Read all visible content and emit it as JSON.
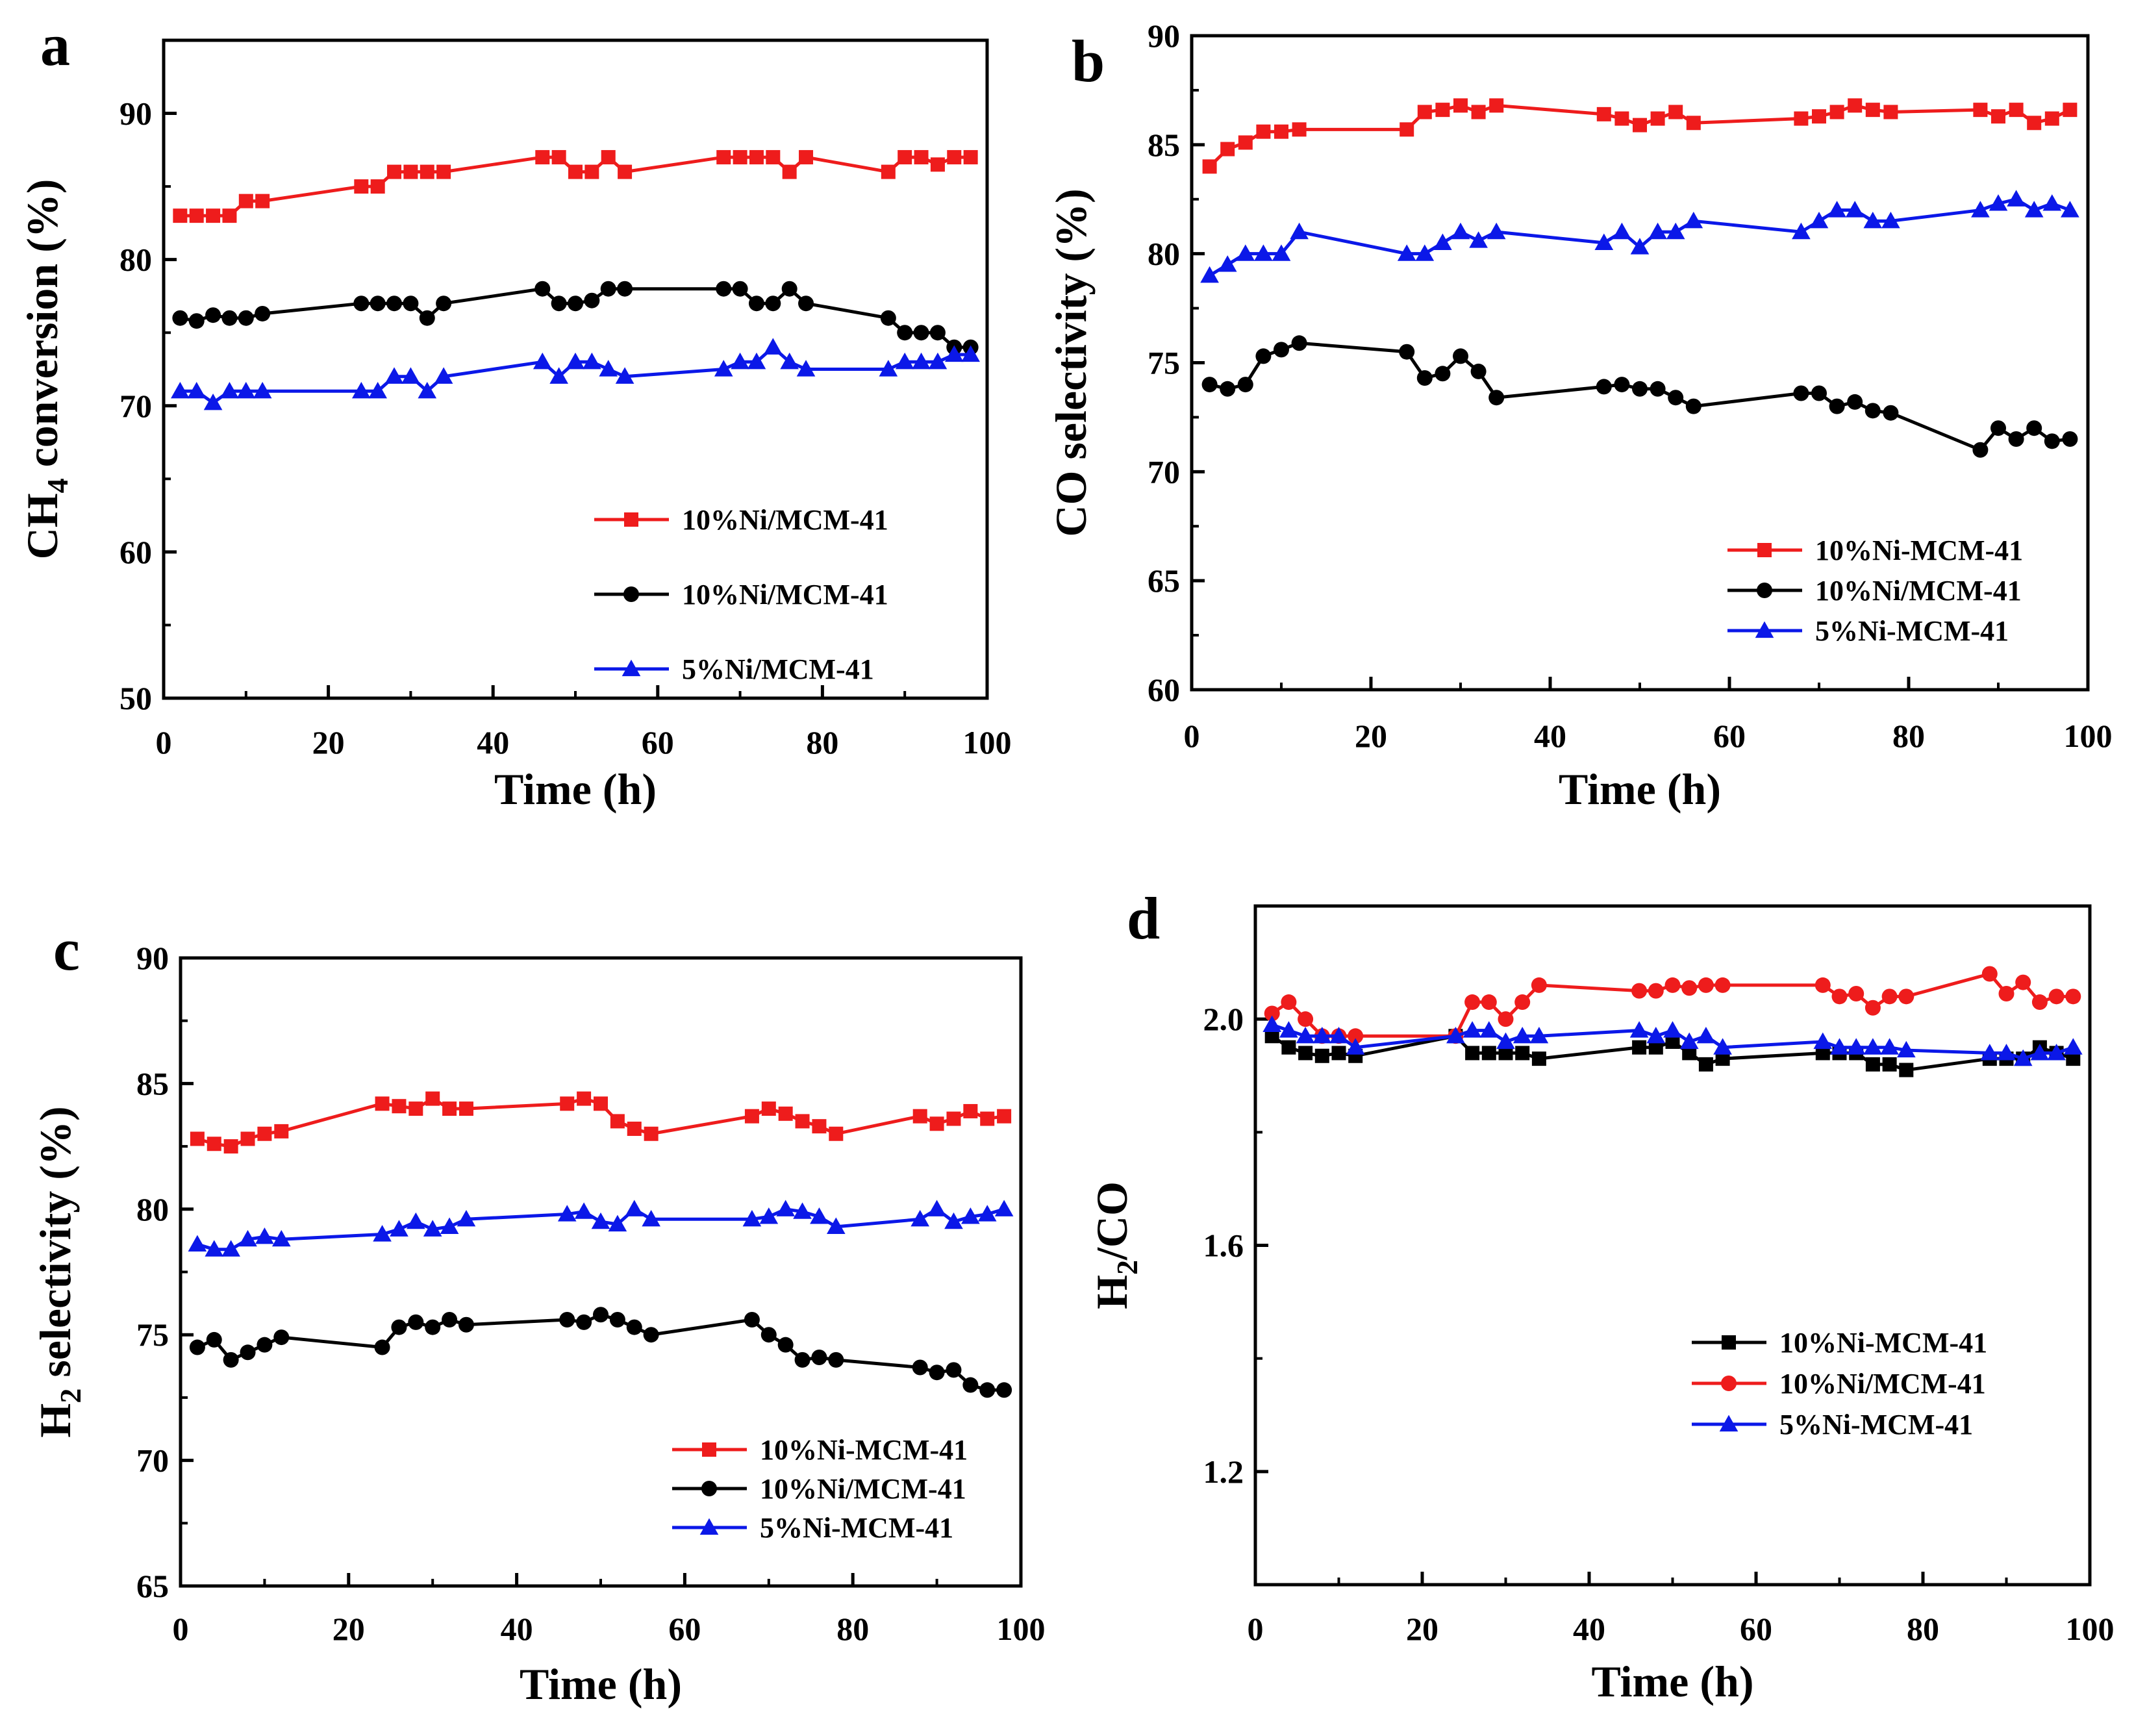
{
  "colors": {
    "red": "#ee1c1c",
    "black": "#000000",
    "blue": "#0b18e8"
  },
  "chart_data": [
    {
      "panel": "a",
      "type": "line",
      "xlabel": "Time (h)",
      "ylabel_main": "CH",
      "ylabel_sub": "4",
      "ylabel_rest": " conversion (%)",
      "xlim": [
        0,
        100
      ],
      "ylim": [
        50,
        95
      ],
      "xticks": [
        0,
        20,
        40,
        60,
        80,
        100
      ],
      "yticks": [
        50,
        60,
        70,
        80,
        90
      ],
      "legend_position": "lower-right",
      "series": [
        {
          "name": "10%Ni/MCM-41",
          "color": "red",
          "marker": "square",
          "x": [
            2,
            4,
            6,
            8,
            10,
            12,
            24,
            26,
            28,
            30,
            32,
            34,
            46,
            48,
            50,
            52,
            54,
            56,
            68,
            70,
            72,
            74,
            76,
            78,
            88,
            90,
            92,
            94,
            96,
            98
          ],
          "y": [
            83,
            83,
            83,
            83,
            84,
            84,
            85,
            85,
            86,
            86,
            86,
            86,
            87,
            87,
            86,
            86,
            87,
            86,
            87,
            87,
            87,
            87,
            86,
            87,
            86,
            87,
            87,
            86.5,
            87,
            87
          ]
        },
        {
          "name": "10%Ni/MCM-41",
          "color": "black",
          "marker": "circle",
          "x": [
            2,
            4,
            6,
            8,
            10,
            12,
            24,
            26,
            28,
            30,
            32,
            34,
            46,
            48,
            50,
            52,
            54,
            56,
            68,
            70,
            72,
            74,
            76,
            78,
            88,
            90,
            92,
            94,
            96,
            98
          ],
          "y": [
            76,
            75.8,
            76.2,
            76,
            76,
            76.3,
            77,
            77,
            77,
            77,
            76,
            77,
            78,
            77,
            77,
            77.2,
            78,
            78,
            78,
            78,
            77,
            77,
            78,
            77,
            76,
            75,
            75,
            75,
            74,
            74
          ]
        },
        {
          "name": "5%Ni/MCM-41",
          "color": "blue",
          "marker": "triangle",
          "x": [
            2,
            4,
            6,
            8,
            10,
            12,
            24,
            26,
            28,
            30,
            32,
            34,
            46,
            48,
            50,
            52,
            54,
            56,
            68,
            70,
            72,
            74,
            76,
            78,
            88,
            90,
            92,
            94,
            96,
            98
          ],
          "y": [
            71,
            71,
            70.2,
            71,
            71,
            71,
            71,
            71,
            72,
            72,
            71,
            72,
            73,
            72,
            73,
            73,
            72.5,
            72,
            72.5,
            73,
            73,
            74,
            73,
            72.5,
            72.5,
            73,
            73,
            73,
            73.5,
            73.5
          ]
        }
      ]
    },
    {
      "panel": "b",
      "type": "line",
      "xlabel": "Time (h)",
      "ylabel_main": "CO selectivity (%)",
      "ylabel_sub": "",
      "ylabel_rest": "",
      "xlim": [
        0,
        100
      ],
      "ylim": [
        60,
        90
      ],
      "xticks": [
        0,
        20,
        40,
        60,
        80,
        100
      ],
      "yticks": [
        60,
        65,
        70,
        75,
        80,
        85,
        90
      ],
      "legend_position": "lower-right",
      "series": [
        {
          "name": "10%Ni-MCM-41",
          "color": "red",
          "marker": "square",
          "x": [
            2,
            4,
            6,
            8,
            10,
            12,
            24,
            26,
            28,
            30,
            32,
            34,
            46,
            48,
            50,
            52,
            54,
            56,
            68,
            70,
            72,
            74,
            76,
            78,
            88,
            90,
            92,
            94,
            96,
            98
          ],
          "y": [
            84,
            84.8,
            85.1,
            85.6,
            85.6,
            85.7,
            85.7,
            86.5,
            86.6,
            86.8,
            86.5,
            86.8,
            86.4,
            86.2,
            85.9,
            86.2,
            86.5,
            86,
            86.2,
            86.3,
            86.5,
            86.8,
            86.6,
            86.5,
            86.6,
            86.3,
            86.6,
            86,
            86.2,
            86.6
          ]
        },
        {
          "name": "10%Ni/MCM-41",
          "color": "black",
          "marker": "circle",
          "x": [
            2,
            4,
            6,
            8,
            10,
            12,
            24,
            26,
            28,
            30,
            32,
            34,
            46,
            48,
            50,
            52,
            54,
            56,
            68,
            70,
            72,
            74,
            76,
            78,
            88,
            90,
            92,
            94,
            96,
            98
          ],
          "y": [
            74,
            73.8,
            74,
            75.3,
            75.6,
            75.9,
            75.5,
            74.3,
            74.5,
            75.3,
            74.6,
            73.4,
            73.9,
            74,
            73.8,
            73.8,
            73.4,
            73,
            73.6,
            73.6,
            73,
            73.2,
            72.8,
            72.7,
            71,
            72,
            71.5,
            72,
            71.4,
            71.5
          ]
        },
        {
          "name": "5%Ni-MCM-41",
          "color": "blue",
          "marker": "triangle",
          "x": [
            2,
            4,
            6,
            8,
            10,
            12,
            24,
            26,
            28,
            30,
            32,
            34,
            46,
            48,
            50,
            52,
            54,
            56,
            68,
            70,
            72,
            74,
            76,
            78,
            88,
            90,
            92,
            94,
            96,
            98
          ],
          "y": [
            79,
            79.5,
            80,
            80,
            80,
            81,
            80,
            80,
            80.5,
            81,
            80.6,
            81,
            80.5,
            81,
            80.3,
            81,
            81,
            81.5,
            81,
            81.5,
            82,
            82,
            81.5,
            81.5,
            82,
            82.3,
            82.5,
            82,
            82.3,
            82
          ]
        }
      ]
    },
    {
      "panel": "c",
      "type": "line",
      "xlabel": "Time (h)",
      "ylabel_main": "H",
      "ylabel_sub": "2",
      "ylabel_rest": " selectivity (%)",
      "xlim": [
        0,
        100
      ],
      "ylim": [
        65,
        90
      ],
      "xticks": [
        0,
        20,
        40,
        60,
        80,
        100
      ],
      "yticks": [
        65,
        70,
        75,
        80,
        85,
        90
      ],
      "legend_position": "lower-right",
      "series": [
        {
          "name": "10%Ni-MCM-41",
          "color": "red",
          "marker": "square",
          "x": [
            2,
            4,
            6,
            8,
            10,
            12,
            24,
            26,
            28,
            30,
            32,
            34,
            46,
            48,
            50,
            52,
            54,
            56,
            68,
            70,
            72,
            74,
            76,
            78,
            88,
            90,
            92,
            94,
            96,
            98
          ],
          "y": [
            82.8,
            82.6,
            82.5,
            82.8,
            83,
            83.1,
            84.2,
            84.1,
            84,
            84.4,
            84,
            84,
            84.2,
            84.4,
            84.2,
            83.5,
            83.2,
            83,
            83.7,
            84,
            83.8,
            83.5,
            83.3,
            83,
            83.7,
            83.4,
            83.6,
            83.9,
            83.6,
            83.7
          ]
        },
        {
          "name": "10%Ni/MCM-41",
          "color": "black",
          "marker": "circle",
          "x": [
            2,
            4,
            6,
            8,
            10,
            12,
            24,
            26,
            28,
            30,
            32,
            34,
            46,
            48,
            50,
            52,
            54,
            56,
            68,
            70,
            72,
            74,
            76,
            78,
            88,
            90,
            92,
            94,
            96,
            98
          ],
          "y": [
            74.5,
            74.8,
            74,
            74.3,
            74.6,
            74.9,
            74.5,
            75.3,
            75.5,
            75.3,
            75.6,
            75.4,
            75.6,
            75.5,
            75.8,
            75.6,
            75.3,
            75,
            75.6,
            75,
            74.6,
            74,
            74.1,
            74,
            73.7,
            73.5,
            73.6,
            73,
            72.8,
            72.8
          ]
        },
        {
          "name": "5%Ni-MCM-41",
          "color": "blue",
          "marker": "triangle",
          "x": [
            2,
            4,
            6,
            8,
            10,
            12,
            24,
            26,
            28,
            30,
            32,
            34,
            46,
            48,
            50,
            52,
            54,
            56,
            68,
            70,
            72,
            74,
            76,
            78,
            88,
            90,
            92,
            94,
            96,
            98
          ],
          "y": [
            78.6,
            78.4,
            78.4,
            78.8,
            78.9,
            78.8,
            79,
            79.2,
            79.5,
            79.2,
            79.3,
            79.6,
            79.8,
            79.9,
            79.5,
            79.4,
            80,
            79.6,
            79.6,
            79.7,
            80,
            79.9,
            79.7,
            79.3,
            79.6,
            80,
            79.5,
            79.7,
            79.8,
            80
          ]
        }
      ]
    },
    {
      "panel": "d",
      "type": "line",
      "xlabel": "Time (h)",
      "ylabel_main": "H",
      "ylabel_sub": "2",
      "ylabel_rest": "/CO",
      "xlim": [
        0,
        100
      ],
      "ylim": [
        1.0,
        2.2
      ],
      "xticks": [
        0,
        20,
        40,
        60,
        80,
        100
      ],
      "yticks": [
        1.2,
        1.6,
        2.0
      ],
      "ytick_labels": [
        "1.2",
        "1.6",
        "2.0"
      ],
      "legend_position": "lower-right",
      "series": [
        {
          "name": "10%Ni-MCM-41",
          "color": "black",
          "marker": "square",
          "x": [
            2,
            4,
            6,
            8,
            10,
            12,
            24,
            26,
            28,
            30,
            32,
            34,
            46,
            48,
            50,
            52,
            54,
            56,
            68,
            70,
            72,
            74,
            76,
            78,
            88,
            90,
            92,
            94,
            96,
            98
          ],
          "y": [
            1.97,
            1.95,
            1.94,
            1.935,
            1.94,
            1.935,
            1.97,
            1.94,
            1.94,
            1.94,
            1.94,
            1.93,
            1.95,
            1.95,
            1.96,
            1.94,
            1.92,
            1.93,
            1.94,
            1.94,
            1.94,
            1.92,
            1.92,
            1.91,
            1.93,
            1.93,
            1.93,
            1.95,
            1.94,
            1.93
          ]
        },
        {
          "name": "10%Ni/MCM-41",
          "color": "red",
          "marker": "circle",
          "x": [
            2,
            4,
            6,
            8,
            10,
            12,
            24,
            26,
            28,
            30,
            32,
            34,
            46,
            48,
            50,
            52,
            54,
            56,
            68,
            70,
            72,
            74,
            76,
            78,
            88,
            90,
            92,
            94,
            96,
            98
          ],
          "y": [
            2.01,
            2.03,
            2,
            1.97,
            1.97,
            1.97,
            1.97,
            2.03,
            2.03,
            2,
            2.03,
            2.06,
            2.05,
            2.05,
            2.06,
            2.055,
            2.06,
            2.06,
            2.06,
            2.04,
            2.045,
            2.02,
            2.04,
            2.04,
            2.08,
            2.045,
            2.065,
            2.03,
            2.04,
            2.04
          ]
        },
        {
          "name": "5%Ni-MCM-41",
          "color": "blue",
          "marker": "triangle",
          "x": [
            2,
            4,
            6,
            8,
            10,
            12,
            24,
            26,
            28,
            30,
            32,
            34,
            46,
            48,
            50,
            52,
            54,
            56,
            68,
            70,
            72,
            74,
            76,
            78,
            88,
            90,
            92,
            94,
            96,
            98
          ],
          "y": [
            1.99,
            1.98,
            1.97,
            1.97,
            1.97,
            1.95,
            1.97,
            1.98,
            1.98,
            1.96,
            1.97,
            1.97,
            1.98,
            1.97,
            1.98,
            1.96,
            1.97,
            1.95,
            1.96,
            1.95,
            1.95,
            1.95,
            1.95,
            1.945,
            1.94,
            1.94,
            1.93,
            1.94,
            1.94,
            1.95
          ]
        }
      ]
    }
  ]
}
